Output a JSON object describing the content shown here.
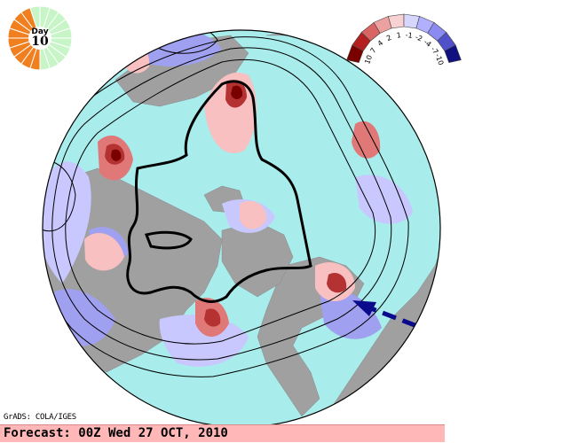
{
  "day_indicator": {
    "label": "Day",
    "number": "10",
    "filled_fraction": 0.45,
    "colors": {
      "filled": "#f07f20",
      "empty": "#c8f5c8",
      "border": "#ffffff"
    }
  },
  "color_scale": {
    "labels": [
      "10",
      "7",
      "4",
      "2",
      "1",
      "-1",
      "-2",
      "-4",
      "-7",
      "-10"
    ],
    "colors": [
      "#7a0000",
      "#b42020",
      "#d86464",
      "#eda0a0",
      "#f8d2d2",
      "#d6d6ff",
      "#b0b0ff",
      "#8a8af0",
      "#5050c8",
      "#101080"
    ]
  },
  "map": {
    "ocean_color": "#a8ecec",
    "land_color": "#a0a0a0",
    "positive_colors": [
      "#f8c0c0",
      "#e07878",
      "#b43232",
      "#7a0000"
    ],
    "negative_colors": [
      "#c8c8ff",
      "#a0a0f0"
    ],
    "contour_color": "#000000",
    "arrow_color": "#0a0a8c",
    "arrow_icon": "dashed-arrow-icon"
  },
  "credit": "GrADS: COLA/IGES",
  "forecast": "Forecast: 00Z Wed 27 OCT, 2010"
}
